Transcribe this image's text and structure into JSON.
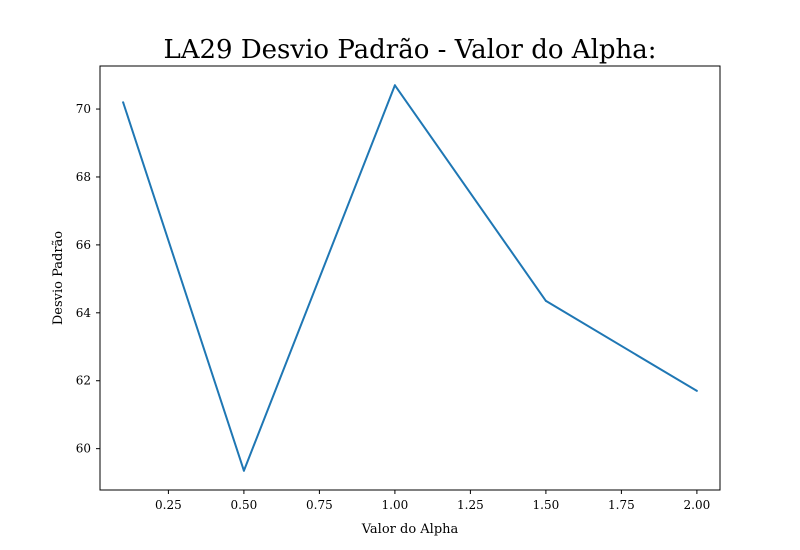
{
  "chart_data": {
    "type": "line",
    "title": "LA29 Desvio Padrão - Valor do Alpha:",
    "xlabel": "Valor do Alpha",
    "ylabel": "Desvio Padrão",
    "x": [
      0.1,
      0.5,
      1.0,
      1.5,
      2.0
    ],
    "series": [
      {
        "values": [
          70.2,
          59.35,
          70.7,
          64.35,
          61.7
        ],
        "color": "#1f77b4"
      }
    ],
    "xlim": [
      0.0235,
      2.0765
    ],
    "ylim": [
      58.7825,
      71.2675
    ],
    "xticks": [
      0.25,
      0.5,
      0.75,
      1.0,
      1.25,
      1.5,
      1.75,
      2.0
    ],
    "xtick_labels": [
      "0.25",
      "0.50",
      "0.75",
      "1.00",
      "1.25",
      "1.50",
      "1.75",
      "2.00"
    ],
    "yticks": [
      60,
      62,
      64,
      66,
      68,
      70
    ],
    "ytick_labels": [
      "60",
      "62",
      "64",
      "66",
      "68",
      "70"
    ],
    "grid": false,
    "legend": "none"
  }
}
